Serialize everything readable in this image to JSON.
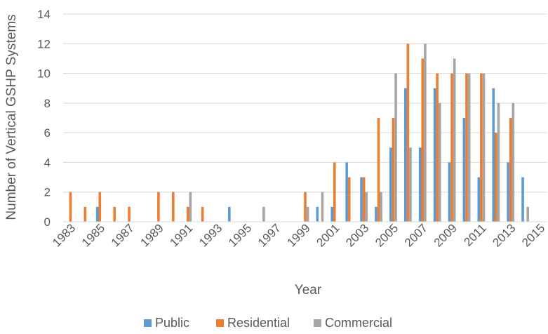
{
  "chart_data": {
    "type": "bar",
    "title": "",
    "xlabel": "Year",
    "ylabel": "Number of Vertical GSHP Systems",
    "ylim": [
      0,
      14
    ],
    "yticks": [
      0,
      2,
      4,
      6,
      8,
      10,
      12,
      14
    ],
    "grid": true,
    "legend": "bottom",
    "categories": [
      1983,
      1984,
      1985,
      1986,
      1987,
      1988,
      1989,
      1990,
      1991,
      1992,
      1993,
      1994,
      1995,
      1996,
      1997,
      1998,
      1999,
      2000,
      2001,
      2002,
      2003,
      2004,
      2005,
      2006,
      2007,
      2008,
      2009,
      2010,
      2011,
      2012,
      2013,
      2014,
      2015
    ],
    "tick_labels": [
      "1983",
      "1985",
      "1987",
      "1989",
      "1991",
      "1993",
      "1995",
      "1997",
      "1999",
      "2001",
      "2003",
      "2005",
      "2007",
      "2009",
      "2011",
      "2013",
      "2015"
    ],
    "series": [
      {
        "name": "Public",
        "color": "#5B9BD5",
        "values": [
          0,
          0,
          1,
          0,
          0,
          0,
          0,
          0,
          0,
          0,
          0,
          1,
          0,
          0,
          0,
          0,
          0,
          1,
          1,
          4,
          3,
          1,
          5,
          9,
          5,
          9,
          4,
          7,
          3,
          9,
          4,
          3,
          0
        ]
      },
      {
        "name": "Residential",
        "color": "#ED7D31",
        "values": [
          2,
          1,
          2,
          1,
          1,
          0,
          2,
          2,
          1,
          1,
          0,
          0,
          0,
          0,
          0,
          0,
          2,
          0,
          4,
          3,
          3,
          7,
          7,
          12,
          11,
          10,
          10,
          10,
          10,
          6,
          7,
          0,
          0
        ]
      },
      {
        "name": "Commercial",
        "color": "#A5A5A5",
        "values": [
          0,
          0,
          0,
          0,
          0,
          0,
          0,
          0,
          2,
          0,
          0,
          0,
          0,
          1,
          0,
          0,
          1,
          2,
          0,
          0,
          2,
          2,
          10,
          5,
          12,
          8,
          11,
          10,
          10,
          8,
          8,
          1,
          0
        ]
      }
    ]
  }
}
